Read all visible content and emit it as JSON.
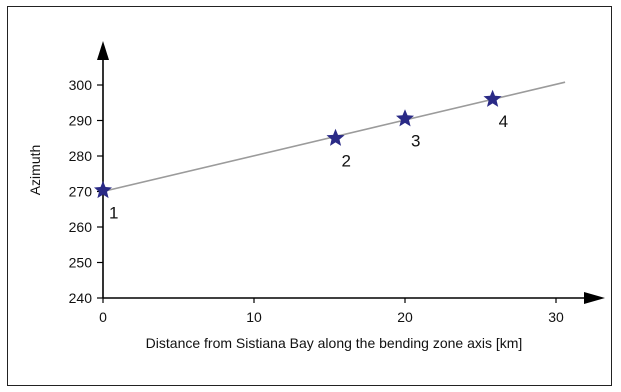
{
  "chart_data": {
    "type": "scatter",
    "xlabel": "Distance from Sistiana Bay along the bending zone axis [km]",
    "ylabel": "Azimuth",
    "xlim": [
      0,
      33
    ],
    "ylim": [
      240,
      306
    ],
    "x_ticks": [
      0,
      10,
      20,
      30
    ],
    "y_ticks": [
      240,
      250,
      260,
      270,
      280,
      290,
      300
    ],
    "grid": false,
    "points": [
      {
        "label": "1",
        "x": 0,
        "y": 270.3
      },
      {
        "label": "2",
        "x": 15.4,
        "y": 285.0
      },
      {
        "label": "3",
        "x": 20.0,
        "y": 290.5
      },
      {
        "label": "4",
        "x": 25.8,
        "y": 296.0
      }
    ],
    "trend_line": {
      "x": [
        0,
        30.6
      ],
      "y": [
        270.0,
        300.8
      ]
    },
    "colors": {
      "marker": "#2a2a86",
      "trend_line": "#9b9b9b",
      "axis": "#000000"
    }
  }
}
